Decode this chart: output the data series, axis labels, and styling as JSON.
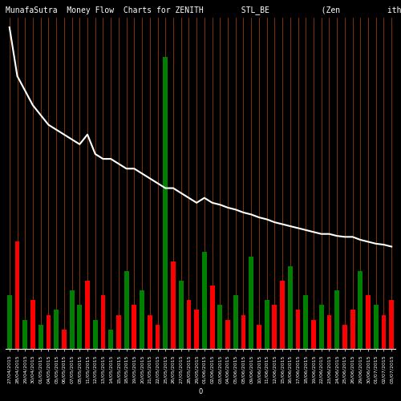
{
  "title": "MunafaSutra  Money Flow  Charts for ZENITH        STL_BE           (Zen          ith St",
  "background_color": "#000000",
  "bar_colors_pattern": [
    "green",
    "red",
    "green",
    "red",
    "green",
    "red",
    "green",
    "red",
    "green",
    "green",
    "red",
    "green",
    "red",
    "green",
    "red",
    "green",
    "red",
    "green",
    "red",
    "red",
    "green",
    "red",
    "green",
    "red",
    "red",
    "green",
    "red",
    "green",
    "red",
    "green",
    "red",
    "green",
    "red",
    "green",
    "red",
    "red",
    "green",
    "red",
    "green",
    "red",
    "green",
    "red",
    "green",
    "red",
    "red",
    "green",
    "red",
    "green",
    "red",
    "red"
  ],
  "bar_heights": [
    55,
    110,
    30,
    50,
    25,
    35,
    40,
    20,
    60,
    45,
    70,
    30,
    55,
    20,
    35,
    80,
    45,
    60,
    35,
    25,
    300,
    90,
    70,
    50,
    40,
    100,
    65,
    45,
    30,
    55,
    35,
    95,
    25,
    50,
    45,
    70,
    85,
    40,
    55,
    30,
    45,
    35,
    60,
    25,
    40,
    80,
    55,
    45,
    35,
    50
  ],
  "line_values": [
    330,
    280,
    265,
    250,
    240,
    230,
    225,
    220,
    215,
    210,
    220,
    200,
    195,
    195,
    190,
    185,
    185,
    180,
    175,
    170,
    165,
    165,
    160,
    155,
    150,
    155,
    150,
    148,
    145,
    143,
    140,
    138,
    135,
    133,
    130,
    128,
    126,
    124,
    122,
    120,
    118,
    118,
    116,
    115,
    115,
    112,
    110,
    108,
    107,
    105
  ],
  "line_color": "#ffffff",
  "vertical_line_color": "#ff6600",
  "xlabel": "0",
  "xlabels": [
    "27/04/2015",
    "28/04/2015",
    "29/04/2015",
    "30/04/2015",
    "01/05/2015",
    "04/05/2015",
    "05/05/2015",
    "06/05/2015",
    "07/05/2015",
    "08/05/2015",
    "11/05/2015",
    "12/05/2015",
    "13/05/2015",
    "14/05/2015",
    "15/05/2015",
    "18/05/2015",
    "19/05/2015",
    "20/05/2015",
    "21/05/2015",
    "22/05/2015",
    "25/05/2015",
    "26/05/2015",
    "27/05/2015",
    "28/05/2015",
    "29/05/2015",
    "01/06/2015",
    "02/06/2015",
    "03/06/2015",
    "04/06/2015",
    "05/06/2015",
    "08/06/2015",
    "09/06/2015",
    "10/06/2015",
    "11/06/2015",
    "12/06/2015",
    "15/06/2015",
    "16/06/2015",
    "17/06/2015",
    "18/06/2015",
    "19/06/2015",
    "22/06/2015",
    "23/06/2015",
    "24/06/2015",
    "25/06/2015",
    "26/06/2015",
    "29/06/2015",
    "30/06/2015",
    "01/07/2015",
    "02/07/2015",
    "03/07/2015"
  ],
  "title_fontsize": 7,
  "tick_fontsize": 4.5,
  "line_width": 1.5
}
